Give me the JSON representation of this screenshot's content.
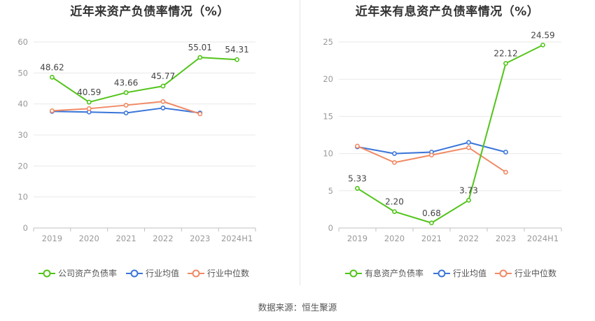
{
  "source_text": "数据来源：恒生聚源",
  "chart_data": [
    {
      "type": "line",
      "title": "近年来资产负债率情况（%）",
      "categories": [
        "2019",
        "2020",
        "2021",
        "2022",
        "2023",
        "2024H1"
      ],
      "ylim": [
        0,
        60
      ],
      "yticks": [
        0,
        10,
        20,
        30,
        40,
        50,
        60
      ],
      "grid": true,
      "legend_position": "bottom",
      "series": [
        {
          "name": "公司资产负债率",
          "color": "#52c41a",
          "values": [
            48.62,
            40.59,
            43.66,
            45.77,
            55.01,
            54.31
          ],
          "labels": [
            "48.62",
            "40.59",
            "43.66",
            "45.77",
            "55.01",
            "54.31"
          ]
        },
        {
          "name": "行业均值",
          "color": "#3a75d9",
          "values": [
            37.6,
            37.4,
            37.1,
            38.7,
            37.1,
            null
          ]
        },
        {
          "name": "行业中位数",
          "color": "#f08a65",
          "values": [
            37.8,
            38.5,
            39.6,
            40.8,
            36.8,
            null
          ]
        }
      ]
    },
    {
      "type": "line",
      "title": "近年来有息资产负债率情况（%）",
      "categories": [
        "2019",
        "2020",
        "2021",
        "2022",
        "2023",
        "2024H1"
      ],
      "ylim": [
        0,
        25
      ],
      "yticks": [
        0,
        5,
        10,
        15,
        20,
        25
      ],
      "grid": true,
      "legend_position": "bottom",
      "series": [
        {
          "name": "有息资产负债率",
          "color": "#52c41a",
          "values": [
            5.33,
            2.2,
            0.68,
            3.73,
            22.12,
            24.59
          ],
          "labels": [
            "5.33",
            "2.20",
            "0.68",
            "3.73",
            "22.12",
            "24.59"
          ]
        },
        {
          "name": "行业均值",
          "color": "#3a75d9",
          "values": [
            10.9,
            10.0,
            10.2,
            11.5,
            10.2,
            null
          ]
        },
        {
          "name": "行业中位数",
          "color": "#f08a65",
          "values": [
            11.0,
            8.8,
            9.8,
            10.8,
            7.5,
            null
          ]
        }
      ]
    }
  ]
}
